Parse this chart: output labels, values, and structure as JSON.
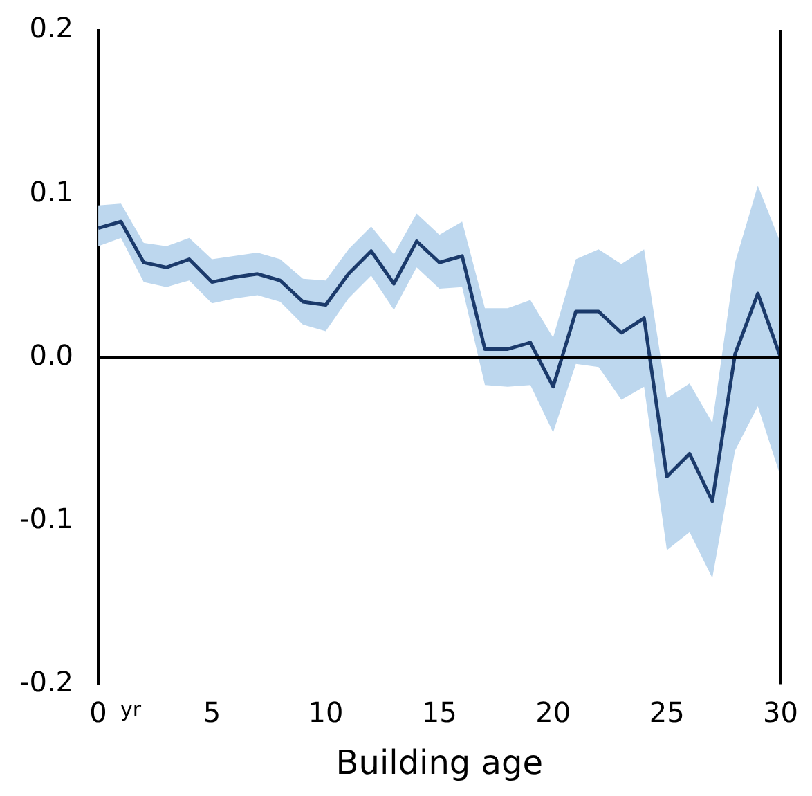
{
  "chart_data": {
    "type": "line",
    "xlabel": "Building age",
    "annotations": [
      "yr"
    ],
    "x": [
      0,
      1,
      2,
      3,
      4,
      5,
      6,
      7,
      8,
      9,
      10,
      11,
      12,
      13,
      14,
      15,
      16,
      17,
      18,
      19,
      20,
      21,
      22,
      23,
      24,
      25,
      26,
      27,
      28,
      29,
      30
    ],
    "series": [
      {
        "color": "#1b3a6b",
        "values": [
          0.079,
          0.083,
          0.058,
          0.055,
          0.06,
          0.046,
          0.049,
          0.051,
          0.047,
          0.034,
          0.032,
          0.051,
          0.065,
          0.045,
          0.071,
          0.058,
          0.062,
          0.005,
          0.005,
          0.009,
          -0.018,
          0.028,
          0.028,
          0.015,
          0.024,
          -0.073,
          -0.059,
          -0.088,
          0.002,
          0.039,
          0.0
        ],
        "lower": [
          0.068,
          0.073,
          0.046,
          0.043,
          0.047,
          0.033,
          0.036,
          0.038,
          0.034,
          0.02,
          0.016,
          0.036,
          0.05,
          0.029,
          0.055,
          0.042,
          0.043,
          -0.017,
          -0.018,
          -0.017,
          -0.046,
          -0.004,
          -0.006,
          -0.026,
          -0.018,
          -0.118,
          -0.107,
          -0.135,
          -0.057,
          -0.03,
          -0.073
        ],
        "upper": [
          0.093,
          0.094,
          0.07,
          0.068,
          0.073,
          0.06,
          0.062,
          0.064,
          0.06,
          0.048,
          0.047,
          0.066,
          0.08,
          0.063,
          0.088,
          0.075,
          0.083,
          0.03,
          0.03,
          0.035,
          0.012,
          0.06,
          0.066,
          0.057,
          0.066,
          -0.025,
          -0.016,
          -0.04,
          0.058,
          0.105,
          0.07
        ]
      }
    ],
    "xlim": [
      0,
      30
    ],
    "xticks": [
      0,
      5,
      10,
      15,
      20,
      25,
      30
    ],
    "ylim": [
      -0.2,
      0.2
    ],
    "yticks": [
      -0.2,
      -0.1,
      {
        "value": 0,
        "label": "0.0"
      },
      0.1,
      0.2
    ],
    "ref_lines": [
      {
        "axis": "y",
        "value": 0,
        "color": "#000000"
      }
    ],
    "grid": false,
    "legend": false,
    "marker": "none",
    "line_style": "solid"
  }
}
